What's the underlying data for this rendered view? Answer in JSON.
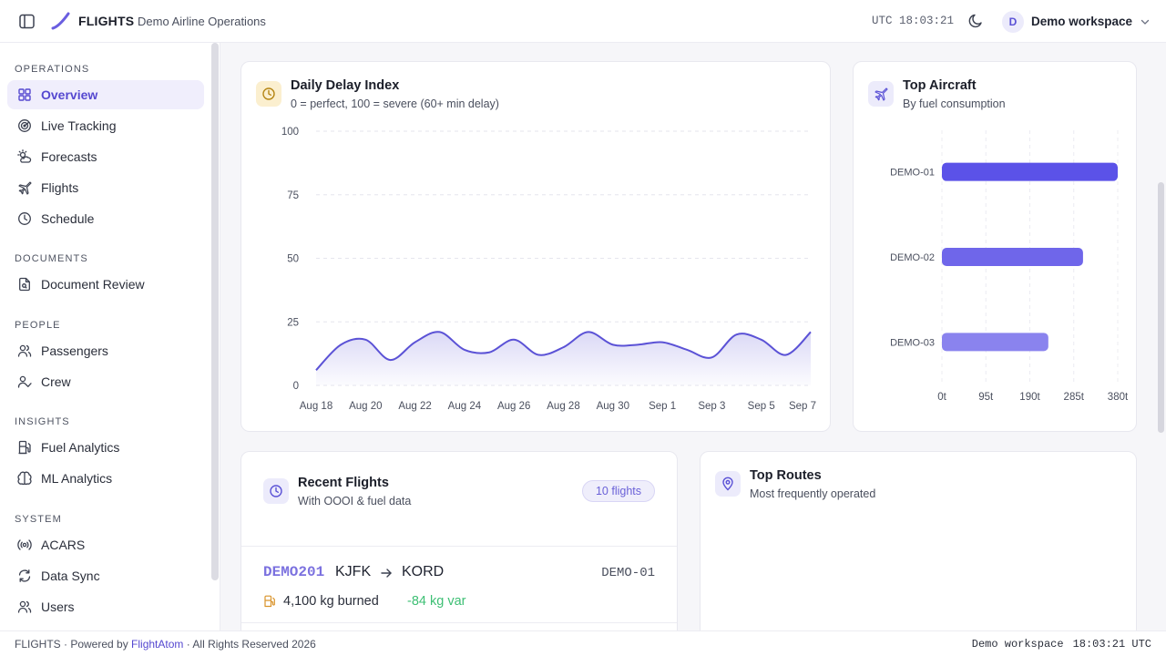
{
  "header": {
    "app_name": "FLIGHTS",
    "app_subtitle": "Demo Airline Operations",
    "clock": "UTC 18:03:21",
    "workspace_initial": "D",
    "workspace_name": "Demo workspace"
  },
  "sidebar": {
    "sections": [
      {
        "label": "OPERATIONS",
        "items": [
          {
            "label": "Overview",
            "icon": "grid-icon",
            "active": true
          },
          {
            "label": "Live Tracking",
            "icon": "radar-icon"
          },
          {
            "label": "Forecasts",
            "icon": "cloud-sun-icon"
          },
          {
            "label": "Flights",
            "icon": "plane-icon"
          },
          {
            "label": "Schedule",
            "icon": "clock-icon"
          }
        ]
      },
      {
        "label": "DOCUMENTS",
        "items": [
          {
            "label": "Document Review",
            "icon": "document-search-icon"
          }
        ]
      },
      {
        "label": "PEOPLE",
        "items": [
          {
            "label": "Passengers",
            "icon": "users-icon"
          },
          {
            "label": "Crew",
            "icon": "user-check-icon"
          }
        ]
      },
      {
        "label": "INSIGHTS",
        "items": [
          {
            "label": "Fuel Analytics",
            "icon": "fuel-icon"
          },
          {
            "label": "ML Analytics",
            "icon": "brain-icon"
          }
        ]
      },
      {
        "label": "SYSTEM",
        "items": [
          {
            "label": "ACARS",
            "icon": "radio-icon"
          },
          {
            "label": "Data Sync",
            "icon": "refresh-icon"
          },
          {
            "label": "Users",
            "icon": "users-icon"
          }
        ]
      }
    ]
  },
  "delay_card": {
    "title": "Daily Delay Index",
    "subtitle": "0 = perfect, 100 = severe (60+ min delay)"
  },
  "aircraft_card": {
    "title": "Top Aircraft",
    "subtitle": "By fuel consumption"
  },
  "recent_flights": {
    "title": "Recent Flights",
    "subtitle": "With OOOI & fuel data",
    "badge": "10 flights",
    "rows": [
      {
        "flight": "DEMO201",
        "from": "KJFK",
        "to": "KORD",
        "aircraft": "DEMO-01",
        "burned": "4,100 kg burned",
        "variance": "-84 kg var"
      }
    ]
  },
  "top_routes": {
    "title": "Top Routes",
    "subtitle": "Most frequently operated"
  },
  "footer": {
    "brand": "FLIGHTS · Powered by ",
    "link": "FlightAtom",
    "rights": " · All Rights Reserved 2026",
    "workspace": "Demo workspace",
    "clock": "18:03:21 UTC"
  },
  "colors": {
    "accent": "#5548d0",
    "line": "#5b52d6",
    "bar1": "#5b52e8",
    "bar2": "#6f66ea",
    "bar3": "#8a83ee",
    "positive": "#3dbf74"
  },
  "chart_data": [
    {
      "type": "area",
      "title": "Daily Delay Index",
      "x_tick_labels": [
        "Aug 18",
        "Aug 20",
        "Aug 22",
        "Aug 24",
        "Aug 26",
        "Aug 28",
        "Aug 30",
        "Sep 1",
        "Sep 3",
        "Sep 5",
        "Sep 7"
      ],
      "x": [
        "Aug 18",
        "Aug 19",
        "Aug 20",
        "Aug 21",
        "Aug 22",
        "Aug 23",
        "Aug 24",
        "Aug 25",
        "Aug 26",
        "Aug 27",
        "Aug 28",
        "Aug 29",
        "Aug 30",
        "Aug 31",
        "Sep 1",
        "Sep 2",
        "Sep 3",
        "Sep 4",
        "Sep 5",
        "Sep 6",
        "Sep 7"
      ],
      "values": [
        6,
        16,
        18,
        10,
        17,
        21,
        14,
        13,
        18,
        12,
        15,
        21,
        16,
        16,
        17,
        14,
        11,
        20,
        18,
        12,
        21
      ],
      "y_ticks": [
        0,
        25,
        50,
        75,
        100
      ],
      "ylim": [
        0,
        100
      ],
      "grid": true
    },
    {
      "type": "bar",
      "orientation": "horizontal",
      "title": "Top Aircraft",
      "categories": [
        "DEMO-01",
        "DEMO-02",
        "DEMO-03"
      ],
      "values": [
        380,
        305,
        230
      ],
      "x_ticks": [
        "0t",
        "95t",
        "190t",
        "285t",
        "380t"
      ],
      "xlim": [
        0,
        380
      ],
      "grid": true
    }
  ]
}
